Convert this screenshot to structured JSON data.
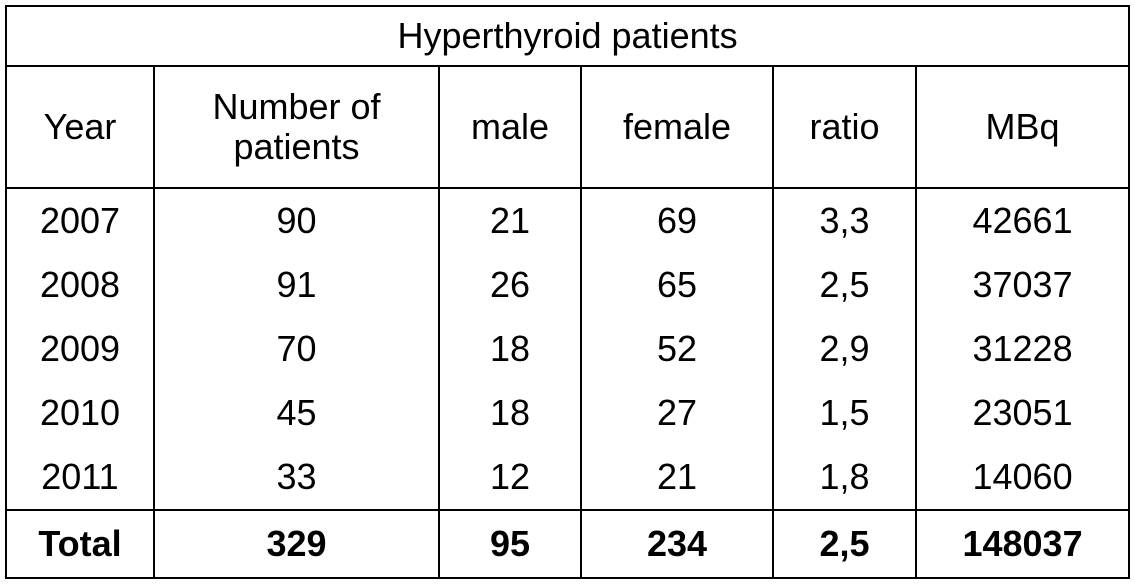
{
  "title": "Hyperthyroid patients",
  "table": {
    "header": [
      "Year",
      "Number of patients",
      "male",
      "female",
      "ratio",
      "MBq"
    ],
    "rows": [
      [
        2007,
        90,
        21,
        69,
        "3,3",
        42661
      ],
      [
        2008,
        91,
        26,
        65,
        "2,5",
        37037
      ],
      [
        2009,
        70,
        18,
        52,
        "2,9",
        31228
      ],
      [
        2010,
        45,
        18,
        27,
        "1,5",
        23051
      ],
      [
        2011,
        33,
        12,
        21,
        "1,8",
        14060
      ]
    ],
    "total": [
      "Total",
      329,
      95,
      234,
      "2,5",
      148037
    ]
  }
}
